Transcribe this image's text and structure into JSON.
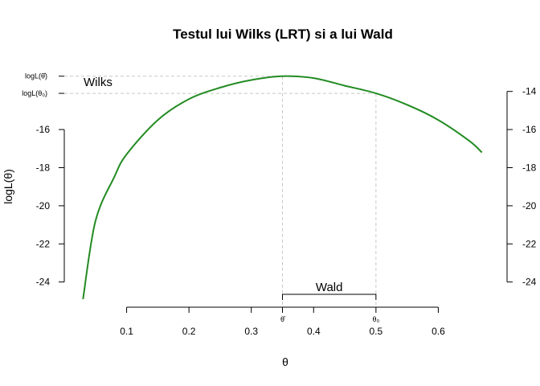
{
  "chart_data": {
    "type": "line",
    "title": "Testul lui Wilks (LRT) si a lui Wald",
    "xlabel": "θ",
    "ylabel": "logL(θ)",
    "xlim": [
      0.0,
      0.7
    ],
    "ylim": [
      -24.9,
      -13.0
    ],
    "grid": false,
    "series": [
      {
        "color": "#228B22",
        "x": [
          0.03,
          0.05,
          0.08,
          0.1,
          0.15,
          0.2,
          0.25,
          0.3,
          0.35,
          0.4,
          0.45,
          0.5,
          0.55,
          0.6,
          0.65,
          0.67
        ],
        "y": [
          -24.9,
          -20.8,
          -18.5,
          -17.3,
          -15.5,
          -14.4,
          -13.8,
          -13.4,
          -13.2,
          -13.3,
          -13.7,
          -14.1,
          -14.7,
          -15.5,
          -16.6,
          -17.2
        ]
      }
    ],
    "x_ticks": [
      {
        "value": 0.1,
        "label": "0.1"
      },
      {
        "value": 0.2,
        "label": "0.2"
      },
      {
        "value": 0.3,
        "label": "0.3"
      },
      {
        "value": 0.4,
        "label": "0.4"
      },
      {
        "value": 0.5,
        "label": "0.5"
      },
      {
        "value": 0.6,
        "label": "0.6"
      }
    ],
    "y_ticks_left": [
      {
        "value": -16,
        "label": "-16"
      },
      {
        "value": -18,
        "label": "-18"
      },
      {
        "value": -20,
        "label": "-20"
      },
      {
        "value": -22,
        "label": "-22"
      },
      {
        "value": -24,
        "label": "-24"
      }
    ],
    "y_ticks_right": [
      {
        "value": -14,
        "label": "-14"
      },
      {
        "value": -16,
        "label": "-16"
      },
      {
        "value": -18,
        "label": "-18"
      },
      {
        "value": -20,
        "label": "-20"
      },
      {
        "value": -22,
        "label": "-22"
      },
      {
        "value": -24,
        "label": "-24"
      }
    ],
    "guide_color": "#c8c8c8",
    "theta_hat": 0.35,
    "theta_0": 0.5,
    "loglik_hat": -13.2,
    "loglik_0": -14.1,
    "marker_labels": {
      "loglik_hat": "logL(θ̂)",
      "loglik_0": "logL(θ₀)",
      "theta_hat": "θ̂",
      "theta_0": "θ₀"
    },
    "annotations": {
      "wilks": "Wilks",
      "wald": "Wald"
    }
  }
}
